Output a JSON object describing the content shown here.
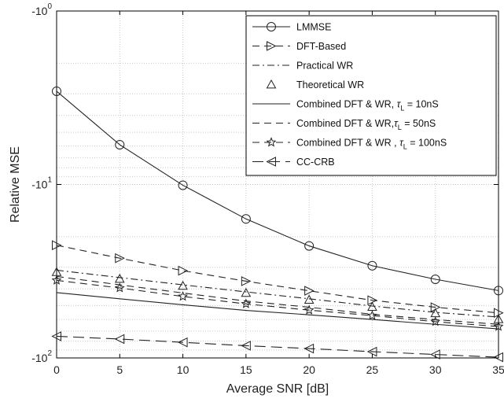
{
  "chart_data": {
    "type": "line",
    "xlabel": "Average SNR [dB]",
    "ylabel": "Relative MSE",
    "xlim": [
      0,
      35
    ],
    "ylim": [
      -100,
      -1
    ],
    "yscale": "log (magnitude)",
    "grid": true,
    "legend_position": "top-right",
    "x_ticks": [
      "0",
      "5",
      "10",
      "15",
      "20",
      "25",
      "30",
      "35"
    ],
    "y_ticks": [
      {
        "base": "-10",
        "exp": "0"
      },
      {
        "base": "-10",
        "exp": "1"
      },
      {
        "base": "-10",
        "exp": "2"
      }
    ],
    "x": [
      0,
      5,
      10,
      15,
      20,
      25,
      30,
      35
    ],
    "series": [
      {
        "name": "LMMSE",
        "marker": "circle",
        "dash": "solid",
        "values": [
          -2.9,
          -5.9,
          -10.1,
          -15.8,
          -22.6,
          -29.4,
          -35.2,
          -40.9
        ]
      },
      {
        "name": "DFT-Based",
        "marker": "triangle-right",
        "dash": "dashed",
        "values": [
          -22.4,
          -26.6,
          -31.4,
          -36.1,
          -41.0,
          -46.5,
          -51.0,
          -55.0
        ]
      },
      {
        "name": "Practical WR",
        "marker": "none",
        "dash": "dashdot",
        "values": [
          -31.2,
          -34.4,
          -37.9,
          -41.6,
          -45.6,
          -50.2,
          -54.6,
          -58.1
        ]
      },
      {
        "name": "Theoretical WR",
        "marker": "triangle-up",
        "dash": "none",
        "values": [
          -32.0,
          -35.0,
          -38.4,
          -42.2,
          -46.2,
          -50.8,
          -55.3,
          -59.8
        ]
      },
      {
        "name": "Combined DFT & WR, τL = 10nS",
        "marker": "none",
        "dash": "solid",
        "values": [
          -42.0,
          -45.6,
          -49.4,
          -53.2,
          -56.4,
          -60.0,
          -64.0,
          -68.0
        ]
      },
      {
        "name": "Combined DFT & WR,τL = 50nS",
        "marker": "none",
        "dash": "dashed",
        "values": [
          -33.9,
          -37.9,
          -42.2,
          -47.0,
          -51.0,
          -56.0,
          -60.1,
          -64.0
        ]
      },
      {
        "name": "Combined DFT & WR , τL = 100nS",
        "marker": "star",
        "dash": "dashed",
        "values": [
          -35.7,
          -39.5,
          -44.2,
          -48.8,
          -53.0,
          -57.0,
          -61.8,
          -65.9
        ]
      },
      {
        "name": "CC-CRB",
        "marker": "triangle-left",
        "dash": "longdash",
        "values": [
          -75.0,
          -77.8,
          -81.3,
          -85.0,
          -88.3,
          -92.0,
          -95.5,
          -99.0
        ]
      }
    ]
  },
  "legend": {
    "items": [
      {
        "prefix": "LMMSE",
        "tau": "",
        "sub": "",
        "suffix": ""
      },
      {
        "prefix": "DFT-Based",
        "tau": "",
        "sub": "",
        "suffix": ""
      },
      {
        "prefix": "Practical WR",
        "tau": "",
        "sub": "",
        "suffix": ""
      },
      {
        "prefix": "Theoretical WR",
        "tau": "",
        "sub": "",
        "suffix": ""
      },
      {
        "prefix": "Combined DFT & WR, ",
        "tau": "τ",
        "sub": "L",
        "suffix": " = 10nS"
      },
      {
        "prefix": "Combined DFT & WR,",
        "tau": "τ",
        "sub": "L",
        "suffix": " = 50nS"
      },
      {
        "prefix": "Combined DFT & WR , ",
        "tau": "τ",
        "sub": "L",
        "suffix": " = 100nS"
      },
      {
        "prefix": "CC-CRB",
        "tau": "",
        "sub": "",
        "suffix": ""
      }
    ]
  },
  "colors": {
    "line": "#222222",
    "grid": "#c8c8c8",
    "axes": "#000000",
    "background": "#ffffff"
  }
}
